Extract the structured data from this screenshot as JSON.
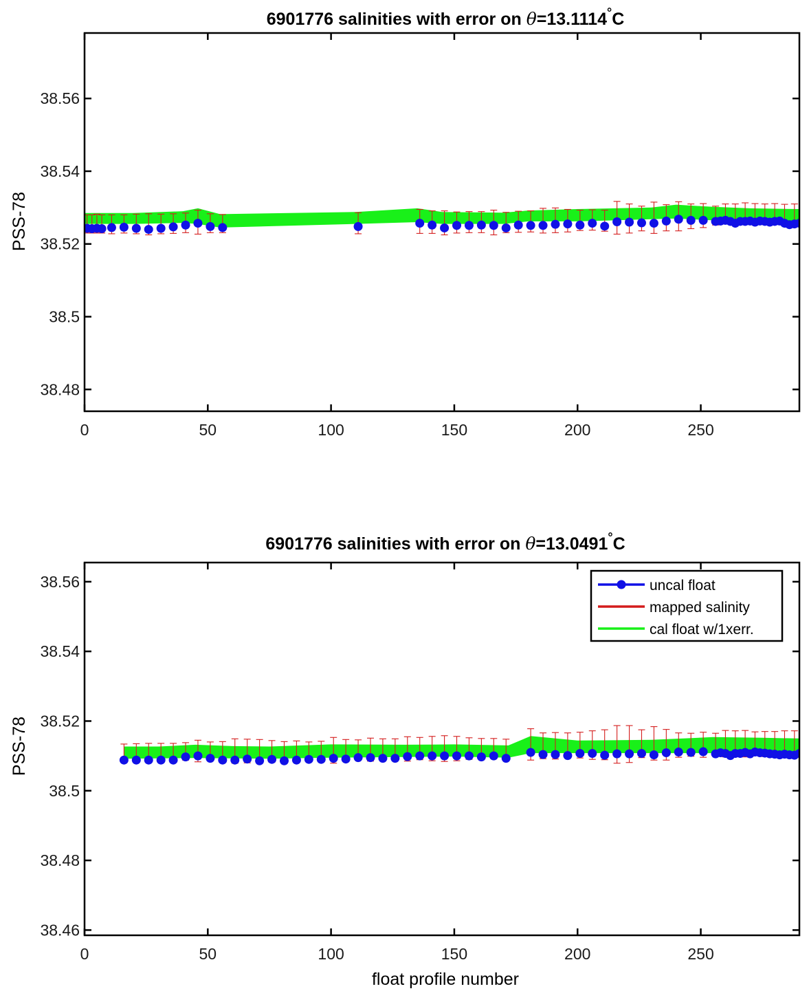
{
  "chart_data": [
    {
      "type": "line",
      "title_prefix": "6901776 salinities with error on ",
      "title_symbol": "θ",
      "title_value": "=13.1114",
      "title_degree": "°",
      "title_unit": "C",
      "xlabel": "",
      "ylabel": "PSS-78",
      "xlim": [
        0,
        290
      ],
      "ylim": [
        38.474,
        38.578
      ],
      "xticks": [
        0,
        50,
        100,
        150,
        200,
        250
      ],
      "yticks": [
        38.48,
        38.5,
        38.52,
        38.54,
        38.56
      ],
      "ytick_labels": [
        "38.48",
        "38.5",
        "38.52",
        "38.54",
        "38.56"
      ],
      "legend": null,
      "colors": {
        "uncal": "#1010e6",
        "mapped": "#d41c1c",
        "cal": "#19f019"
      },
      "band_x": [
        0,
        20,
        40,
        46,
        55,
        110,
        135,
        145,
        170,
        180,
        200,
        215,
        230,
        240,
        255,
        270,
        290
      ],
      "band_lower": [
        38.5255,
        38.5255,
        38.5258,
        38.5255,
        38.5245,
        38.5255,
        38.526,
        38.5255,
        38.5255,
        38.5262,
        38.5262,
        38.5265,
        38.5268,
        38.527,
        38.5265,
        38.5262,
        38.5262
      ],
      "band_upper": [
        38.5285,
        38.5285,
        38.529,
        38.5298,
        38.5282,
        38.5288,
        38.5298,
        38.5288,
        38.5286,
        38.5292,
        38.5296,
        38.5298,
        38.53,
        38.5308,
        38.5302,
        38.5298,
        38.5296
      ],
      "uncal_x": [
        1,
        3,
        5,
        7,
        11,
        16,
        21,
        26,
        31,
        36,
        41,
        46,
        51,
        56,
        111,
        136,
        141,
        146,
        151,
        156,
        161,
        166,
        171,
        176,
        181,
        186,
        191,
        196,
        201,
        206,
        211,
        216,
        221,
        226,
        231,
        236,
        241,
        246,
        251,
        256,
        258,
        260,
        262,
        264,
        266,
        268,
        270,
        272,
        274,
        276,
        278,
        280,
        282,
        284,
        286,
        288,
        290
      ],
      "uncal_y": [
        38.5243,
        38.5242,
        38.5243,
        38.5242,
        38.5245,
        38.5246,
        38.5243,
        38.524,
        38.5243,
        38.5247,
        38.5252,
        38.5257,
        38.5248,
        38.5245,
        38.5248,
        38.5257,
        38.5252,
        38.5244,
        38.5251,
        38.5251,
        38.5252,
        38.5251,
        38.5244,
        38.5252,
        38.5251,
        38.5251,
        38.5254,
        38.5255,
        38.5252,
        38.5257,
        38.5249,
        38.5261,
        38.526,
        38.5258,
        38.5257,
        38.5263,
        38.5268,
        38.5265,
        38.5265,
        38.5262,
        38.5263,
        38.5265,
        38.5262,
        38.5257,
        38.5262,
        38.5262,
        38.5263,
        38.526,
        38.5263,
        38.5262,
        38.526,
        38.5262,
        38.5263,
        38.5257,
        38.5253,
        38.5255,
        38.5257
      ],
      "err_x": [
        1,
        3,
        5,
        7,
        11,
        16,
        21,
        26,
        31,
        36,
        41,
        46,
        51,
        56,
        111,
        136,
        141,
        146,
        151,
        156,
        161,
        166,
        171,
        176,
        181,
        186,
        191,
        196,
        201,
        206,
        211,
        216,
        221,
        226,
        231,
        236,
        241,
        246,
        251,
        256,
        260,
        264,
        268,
        272,
        276,
        280,
        284,
        288
      ],
      "err_mid": [
        38.5255,
        38.5255,
        38.5256,
        38.5255,
        38.5254,
        38.5255,
        38.5255,
        38.5254,
        38.5255,
        38.5256,
        38.5258,
        38.526,
        38.5257,
        38.5256,
        38.5257,
        38.5262,
        38.526,
        38.5258,
        38.5259,
        38.526,
        38.526,
        38.5259,
        38.5259,
        38.5261,
        38.5262,
        38.5264,
        38.5265,
        38.5264,
        38.5265,
        38.5266,
        38.5264,
        38.5272,
        38.527,
        38.527,
        38.5272,
        38.5272,
        38.5276,
        38.5276,
        38.5278,
        38.5278,
        38.5283,
        38.5283,
        38.5284,
        38.5283,
        38.5283,
        38.5283,
        38.5282,
        38.5282
      ],
      "err_half": [
        0.0025,
        0.0025,
        0.0026,
        0.0025,
        0.0026,
        0.0025,
        0.0027,
        0.0029,
        0.0027,
        0.0027,
        0.0027,
        0.0033,
        0.0026,
        0.0025,
        0.0029,
        0.0033,
        0.0031,
        0.0033,
        0.0029,
        0.0029,
        0.0029,
        0.0034,
        0.0028,
        0.0029,
        0.0029,
        0.0034,
        0.0034,
        0.0031,
        0.0028,
        0.0028,
        0.0029,
        0.0045,
        0.004,
        0.0034,
        0.0043,
        0.0036,
        0.004,
        0.0034,
        0.0033,
        0.0026,
        0.0027,
        0.0027,
        0.0029,
        0.0028,
        0.0027,
        0.0028,
        0.0027,
        0.0028
      ]
    },
    {
      "type": "line",
      "title_prefix": "6901776 salinities with error on ",
      "title_symbol": "θ",
      "title_value": "=13.0491",
      "title_degree": "°",
      "title_unit": "C",
      "xlabel": "float profile number",
      "ylabel": "PSS-78",
      "xlim": [
        0,
        290
      ],
      "ylim": [
        38.4585,
        38.5655
      ],
      "xticks": [
        0,
        50,
        100,
        150,
        200,
        250
      ],
      "yticks": [
        38.46,
        38.48,
        38.5,
        38.52,
        38.54,
        38.56
      ],
      "ytick_labels": [
        "38.46",
        "38.48",
        "38.5",
        "38.52",
        "38.54",
        "38.56"
      ],
      "legend": {
        "placement": "top-right",
        "entries": [
          {
            "label": "uncal float",
            "color": "#1010e6",
            "marker": "circle"
          },
          {
            "label": "mapped salinity",
            "color": "#d41c1c",
            "marker": "none"
          },
          {
            "label": "cal float w/1xerr.",
            "color": "#19f019",
            "marker": "none"
          }
        ]
      },
      "colors": {
        "uncal": "#1010e6",
        "mapped": "#d41c1c",
        "cal": "#19f019"
      },
      "band_x": [
        16,
        30,
        45,
        60,
        75,
        100,
        130,
        150,
        172,
        181,
        200,
        230,
        255,
        275,
        290
      ],
      "band_lower": [
        38.5092,
        38.5093,
        38.5094,
        38.5093,
        38.5092,
        38.5095,
        38.5097,
        38.5098,
        38.5095,
        38.5108,
        38.5108,
        38.5108,
        38.5108,
        38.5108,
        38.5108
      ],
      "band_upper": [
        38.5127,
        38.5127,
        38.5132,
        38.5128,
        38.5127,
        38.5133,
        38.5132,
        38.5133,
        38.513,
        38.5157,
        38.5144,
        38.5146,
        38.5154,
        38.5152,
        38.515
      ],
      "uncal_x": [
        16,
        21,
        26,
        31,
        36,
        41,
        46,
        51,
        56,
        61,
        66,
        71,
        76,
        81,
        86,
        91,
        96,
        101,
        106,
        111,
        116,
        121,
        126,
        131,
        136,
        141,
        146,
        151,
        156,
        161,
        166,
        171,
        181,
        186,
        191,
        196,
        201,
        206,
        211,
        216,
        221,
        226,
        231,
        236,
        241,
        246,
        251,
        256,
        258,
        260,
        262,
        264,
        266,
        268,
        270,
        272,
        274,
        276,
        278,
        280,
        282,
        284,
        286,
        288,
        290
      ],
      "uncal_y": [
        38.5088,
        38.5088,
        38.5088,
        38.5088,
        38.5088,
        38.5097,
        38.51,
        38.5093,
        38.5088,
        38.5088,
        38.5091,
        38.5086,
        38.509,
        38.5086,
        38.5088,
        38.509,
        38.509,
        38.5093,
        38.5091,
        38.5095,
        38.5095,
        38.5093,
        38.5093,
        38.5098,
        38.51,
        38.51,
        38.51,
        38.51,
        38.51,
        38.5097,
        38.51,
        38.5093,
        38.511,
        38.5104,
        38.5104,
        38.5101,
        38.5107,
        38.5107,
        38.5102,
        38.5106,
        38.5106,
        38.5107,
        38.5103,
        38.5109,
        38.5111,
        38.511,
        38.5112,
        38.5106,
        38.5109,
        38.5107,
        38.5101,
        38.5107,
        38.5107,
        38.511,
        38.5106,
        38.5111,
        38.5109,
        38.5108,
        38.5106,
        38.5105,
        38.5103,
        38.5105,
        38.5103,
        38.5102,
        38.5107
      ],
      "err_x": [
        16,
        21,
        26,
        31,
        36,
        41,
        46,
        51,
        56,
        61,
        66,
        71,
        76,
        81,
        86,
        91,
        96,
        101,
        106,
        111,
        116,
        121,
        126,
        131,
        136,
        141,
        146,
        151,
        156,
        161,
        166,
        171,
        181,
        186,
        191,
        196,
        201,
        206,
        211,
        216,
        221,
        226,
        231,
        236,
        241,
        246,
        251,
        256,
        260,
        264,
        268,
        272,
        276,
        280,
        284,
        288
      ],
      "err_mid": [
        38.5109,
        38.511,
        38.511,
        38.5111,
        38.5111,
        38.5113,
        38.5114,
        38.5113,
        38.5113,
        38.5114,
        38.5114,
        38.5113,
        38.5113,
        38.5113,
        38.5114,
        38.5115,
        38.5115,
        38.5116,
        38.5116,
        38.5117,
        38.5118,
        38.5118,
        38.5119,
        38.512,
        38.5121,
        38.5121,
        38.5121,
        38.5121,
        38.5121,
        38.512,
        38.5121,
        38.512,
        38.5133,
        38.5129,
        38.5129,
        38.513,
        38.5131,
        38.5131,
        38.5132,
        38.5133,
        38.5134,
        38.5135,
        38.5136,
        38.5132,
        38.5131,
        38.5132,
        38.5132,
        38.5132,
        38.5135,
        38.5135,
        38.5135,
        38.5135,
        38.5134,
        38.5134,
        38.5134,
        38.5134
      ],
      "err_half": [
        0.0025,
        0.0025,
        0.0026,
        0.0025,
        0.0025,
        0.0025,
        0.0031,
        0.0027,
        0.0028,
        0.0035,
        0.0034,
        0.0034,
        0.0031,
        0.0028,
        0.0029,
        0.0025,
        0.0027,
        0.0037,
        0.0031,
        0.0029,
        0.0033,
        0.0031,
        0.003,
        0.0035,
        0.0032,
        0.0035,
        0.0037,
        0.0035,
        0.0031,
        0.003,
        0.0029,
        0.0028,
        0.0045,
        0.0037,
        0.0038,
        0.0036,
        0.0037,
        0.0041,
        0.0043,
        0.0054,
        0.0053,
        0.004,
        0.0048,
        0.0044,
        0.0035,
        0.0033,
        0.0036,
        0.0033,
        0.0038,
        0.0037,
        0.0038,
        0.0034,
        0.0036,
        0.0036,
        0.0038,
        0.0038
      ]
    }
  ]
}
